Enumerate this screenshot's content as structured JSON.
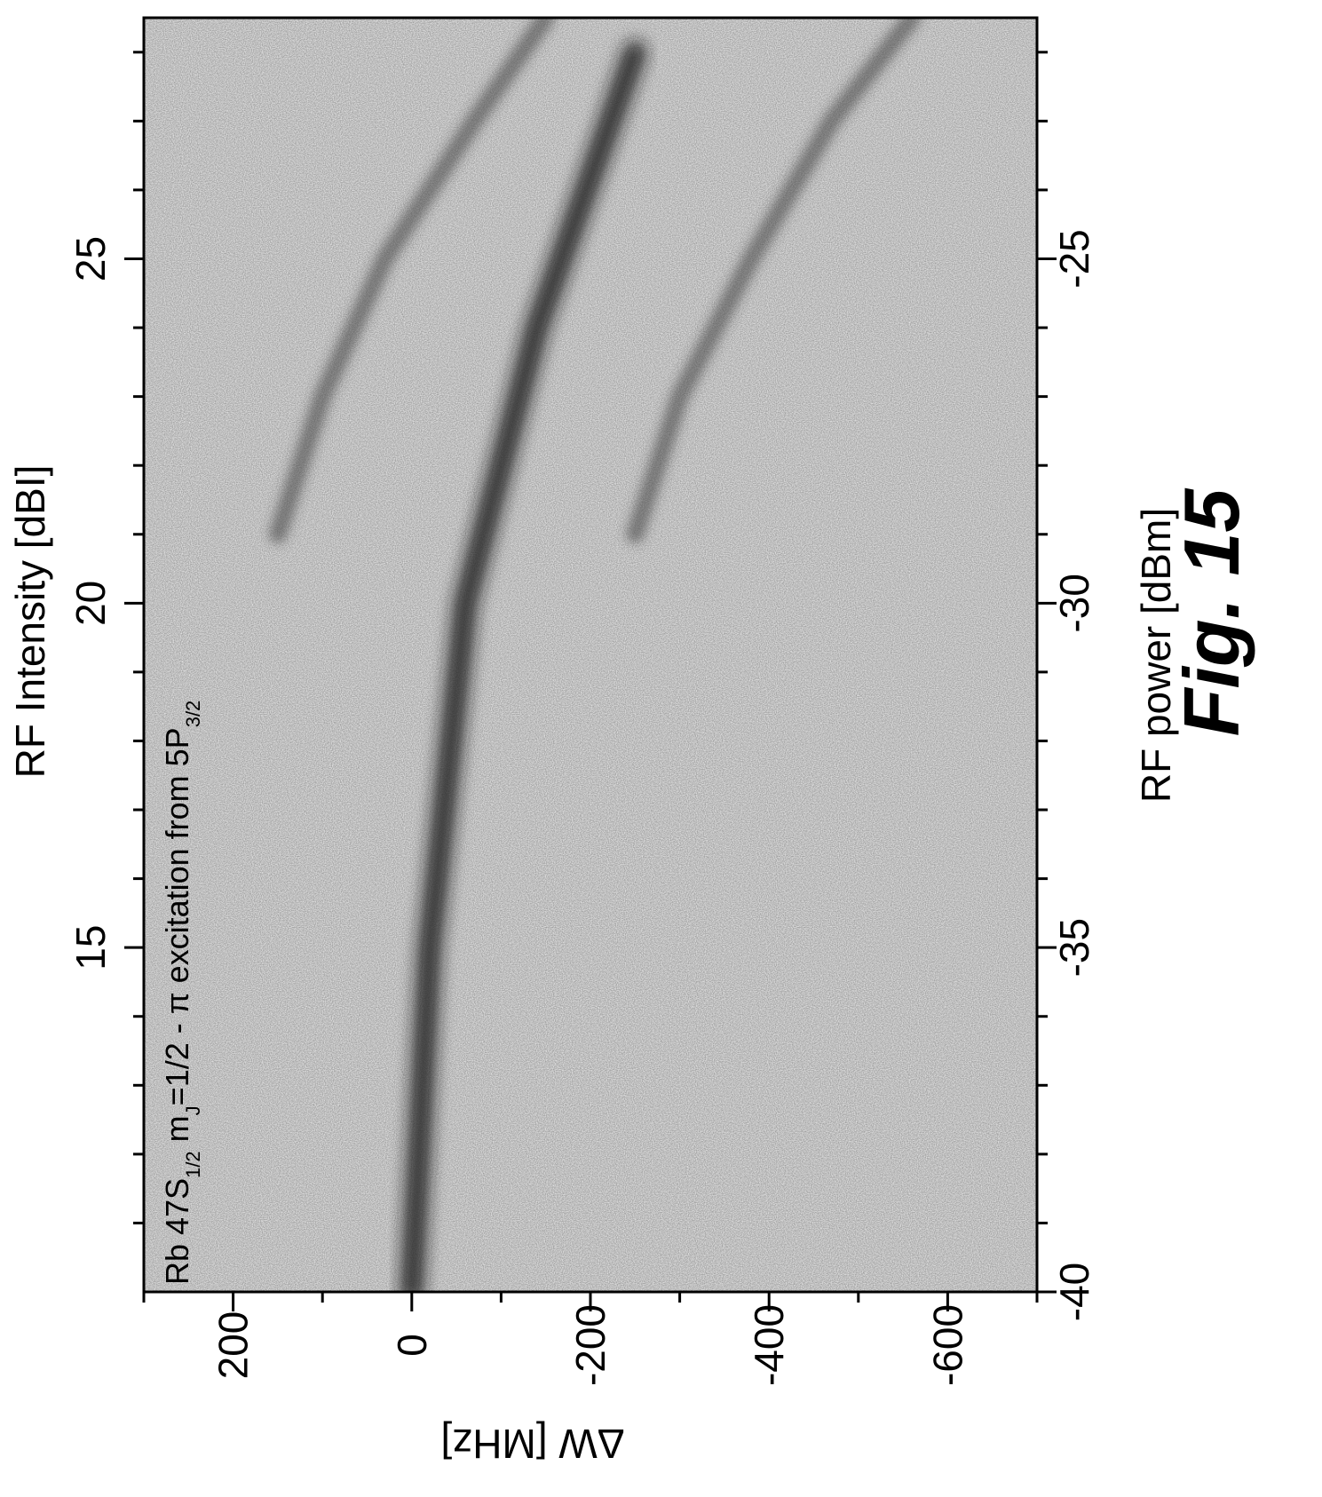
{
  "chart_data": {
    "type": "heatmap",
    "colormap": "grayscale",
    "orientation": "rotated 90° (page viewed in landscape)",
    "x_bottom_axis": {
      "label": "ΔW [MHz]",
      "range": [
        300,
        -700
      ],
      "ticks": [
        200,
        0,
        -200,
        -400,
        -600
      ],
      "tick_labels": [
        "200",
        "0",
        "-200",
        "-400",
        "-600"
      ]
    },
    "y_right_axis": {
      "label": "RF power [dBm]",
      "range": [
        -40,
        -21.5
      ],
      "ticks": [
        -40,
        -35,
        -30,
        -25
      ],
      "tick_labels": [
        "-40",
        "-35",
        "-30",
        "-25"
      ]
    },
    "y_left_axis": {
      "label": "RF Intensity [dBI]",
      "range": [
        10,
        28.5
      ],
      "ticks": [
        15,
        20,
        25
      ],
      "tick_labels": [
        "15",
        "20",
        "25"
      ]
    },
    "annotation": {
      "line1_prefix": "Rb 47S",
      "line1_sub1": "1/2",
      "line1_mid": " m",
      "line1_sub2": "J",
      "line1_suffix": "=1/2  -  π excitation from 5P",
      "line1_sub3": "3/2"
    },
    "features": [
      {
        "name": "main resonance",
        "points": [
          [
            0,
            -40
          ],
          [
            -20,
            -35
          ],
          [
            -60,
            -30
          ],
          [
            -140,
            -26
          ],
          [
            -250,
            -22
          ]
        ]
      },
      {
        "name": "upper sideband",
        "points": [
          [
            150,
            -29
          ],
          [
            100,
            -27
          ],
          [
            30,
            -25
          ],
          [
            -70,
            -23
          ],
          [
            -150,
            -21.5
          ]
        ]
      },
      {
        "name": "lower sideband",
        "points": [
          [
            -250,
            -29
          ],
          [
            -300,
            -27
          ],
          [
            -380,
            -25
          ],
          [
            -470,
            -23
          ],
          [
            -560,
            -21.5
          ]
        ]
      }
    ],
    "figure_label": "Fig. 15"
  }
}
